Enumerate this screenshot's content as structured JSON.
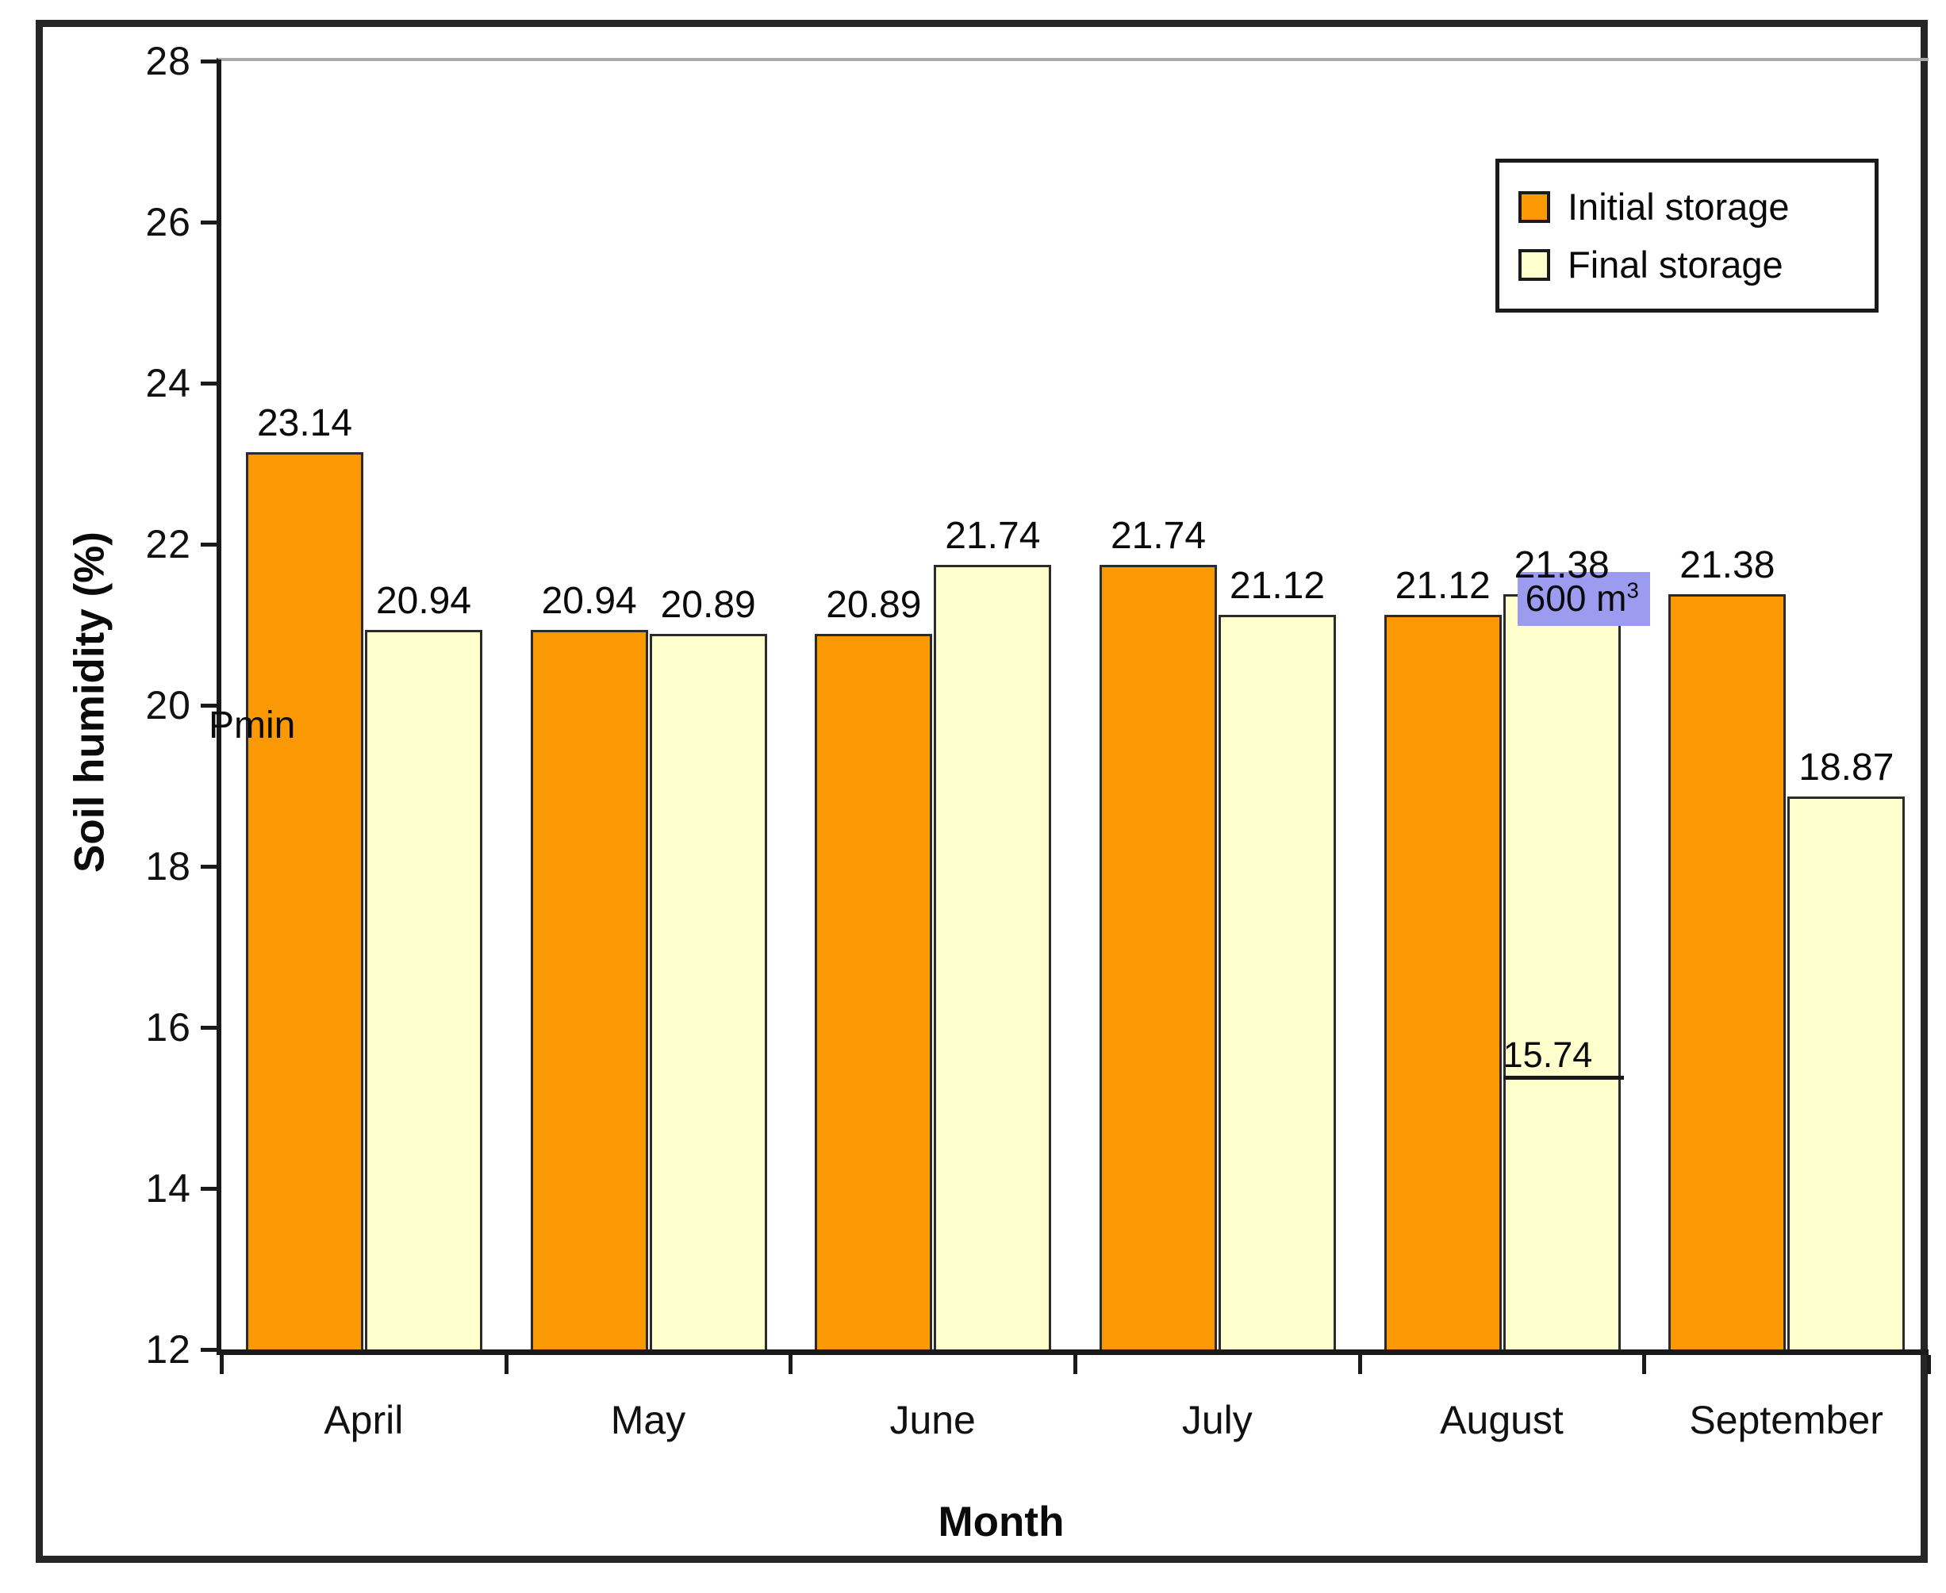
{
  "chart_data": {
    "type": "bar",
    "title": "",
    "xlabel": "Month",
    "ylabel": "Soil humidity (%)",
    "ylim": [
      12,
      28
    ],
    "ytick_step": 2,
    "ytick_labels": [
      "28",
      "26",
      "24",
      "22",
      "20",
      "18",
      "16",
      "14",
      "12"
    ],
    "categories": [
      "April",
      "May",
      "June",
      "July",
      "August",
      "September"
    ],
    "series": [
      {
        "name": "Initial storage",
        "color": "#FB9905",
        "border_color": "#2B2B2B",
        "values": [
          23.14,
          20.94,
          20.89,
          21.74,
          21.12,
          21.38
        ]
      },
      {
        "name": "Final storage",
        "color": "#FFFFCE",
        "border_color": "#2B2B2B",
        "values": [
          20.94,
          20.89,
          21.74,
          21.12,
          21.38,
          18.87
        ]
      }
    ],
    "bar_value_labels": [
      [
        "23.14",
        "20.94",
        "20.89",
        "21.74",
        "21.12",
        "21.38"
      ],
      [
        "20.94",
        "20.89",
        "21.74",
        "21.12",
        "21.38",
        "18.87"
      ]
    ],
    "legend": {
      "position": "top-right"
    },
    "grid": {
      "top_gridline_color": "#ABABAB"
    },
    "annotations": [
      {
        "id": "pmin-label",
        "text": "Pmin",
        "anchor": "y-axis",
        "value": 19.9
      },
      {
        "id": "volume-callout",
        "text": "600 m",
        "superscript": "3",
        "highlight_color": "#9B9BEF",
        "category_index": 4,
        "value_top": 21.66
      },
      {
        "id": "level-callout",
        "text": "15.74",
        "underline": true,
        "category_index": 4,
        "value": 15.35
      }
    ]
  }
}
